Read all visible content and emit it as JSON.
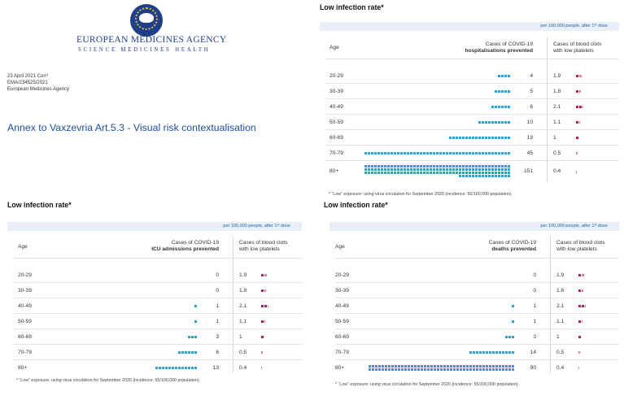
{
  "header": {
    "agency_name": "EUROPEAN MEDICINES AGENCY",
    "tagline": "SCIENCE   MEDICINES   HEALTH",
    "date_line": "23 April 2021 Corr¹",
    "ref_line": "EMA/234525/2021",
    "org_line": "European Medicines Agency",
    "annex_title": "Annex to Vaxzevria Art.5.3 - Visual risk contextualisation",
    "logo_icon": "ema-logo-icon"
  },
  "colors": {
    "prevented": "#2aa0d2",
    "clots": "#b0205e",
    "accent": "#1f3f87"
  },
  "panels": [
    {
      "id": "hosp",
      "title": "Low infection rate*",
      "per_note": "per 100,000 people, after 1ˢᵗ dose",
      "age_header": "Age",
      "cases_header_line1": "Cases of COVID-19",
      "cases_header_line2": "hospitalisations prevented",
      "clots_header_line1": "Cases of blood clots",
      "clots_header_line2": "with low platelets",
      "footnote": "* “Low” exposure: using virus circulation for September 2020 (incidence: 55/100,000 population)",
      "rows": [
        {
          "age": "20-29",
          "prevented": 4,
          "clots": 1.9
        },
        {
          "age": "30-39",
          "prevented": 5,
          "clots": 1.8
        },
        {
          "age": "40-49",
          "prevented": 6,
          "clots": 2.1
        },
        {
          "age": "50-59",
          "prevented": 10,
          "clots": 1.1
        },
        {
          "age": "60-69",
          "prevented": 19,
          "clots": 1
        },
        {
          "age": "70-79",
          "prevented": 45,
          "clots": 0.5
        },
        {
          "age": "80+",
          "prevented": 151,
          "clots": 0.4
        }
      ]
    },
    {
      "id": "icu",
      "title": "Low infection rate*",
      "per_note": "per 100,000 people, after 1ˢᵗ dose",
      "age_header": "Age",
      "cases_header_line1": "Cases of COVID-19",
      "cases_header_line2": "ICU admissions prevented",
      "clots_header_line1": "Cases of blood clots",
      "clots_header_line2": "with low platelets",
      "footnote": "* “Low” exposure: using virus circulation for September 2020 (incidence: 55/100,000 population)",
      "rows": [
        {
          "age": "20-29",
          "prevented": 0,
          "clots": 1.9
        },
        {
          "age": "30-39",
          "prevented": 0,
          "clots": 1.8
        },
        {
          "age": "40-49",
          "prevented": 1,
          "clots": 2.1
        },
        {
          "age": "50-59",
          "prevented": 1,
          "clots": 1.1
        },
        {
          "age": "60-69",
          "prevented": 3,
          "clots": 1
        },
        {
          "age": "70-79",
          "prevented": 6,
          "clots": 0.5
        },
        {
          "age": "80+",
          "prevented": 13,
          "clots": 0.4
        }
      ]
    },
    {
      "id": "deaths",
      "title": "Low infection rate*",
      "per_note": "per 100,000 people, after 1ˢᵗ dose",
      "age_header": "Age",
      "cases_header_line1": "Cases of COVID-19",
      "cases_header_line2": "deaths prevented",
      "clots_header_line1": "Cases of blood clots",
      "clots_header_line2": "with low platelets",
      "footnote": "* “Low” exposure: using virus circulation for September 2020 (incidence: 55/100,000 population)",
      "rows": [
        {
          "age": "20-29",
          "prevented": 0,
          "clots": 1.9
        },
        {
          "age": "30-39",
          "prevented": 0,
          "clots": 1.8
        },
        {
          "age": "40-49",
          "prevented": 1,
          "clots": 2.1
        },
        {
          "age": "50-59",
          "prevented": 1,
          "clots": 1.1
        },
        {
          "age": "60-69",
          "prevented": 3,
          "clots": 1
        },
        {
          "age": "70-79",
          "prevented": 14,
          "clots": 0.5
        },
        {
          "age": "80+",
          "prevented": 90,
          "clots": 0.4
        }
      ]
    }
  ]
}
